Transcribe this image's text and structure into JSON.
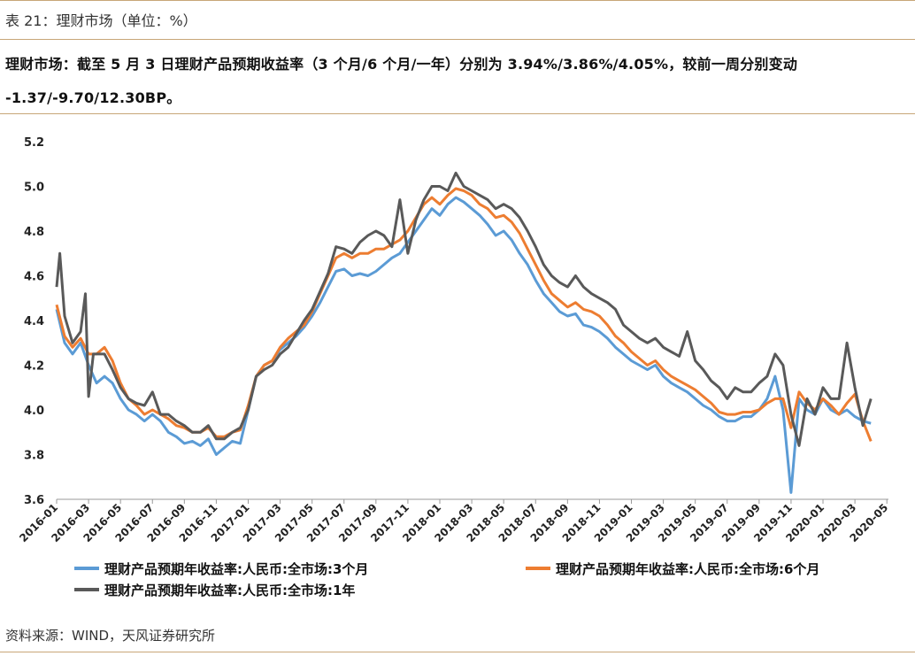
{
  "header": {
    "table_title": "表 21：理财市场（单位：%）",
    "summary": "理财市场：截至 5 月 3 日理财产品预期收益率（3 个月/6 个月/一年）分别为 3.94%/3.86%/4.05%，较前一周分别变动 -1.37/-9.70/12.30BP。"
  },
  "footer": {
    "source": "资料来源：WIND，天风证券研究所"
  },
  "chart_data": {
    "type": "line",
    "ylim": [
      3.6,
      5.2
    ],
    "yticks": [
      "3.6",
      "3.8",
      "4.0",
      "4.2",
      "4.4",
      "4.6",
      "4.8",
      "5.0",
      "5.2"
    ],
    "xticks": [
      "2016-01",
      "2016-03",
      "2016-05",
      "2016-07",
      "2016-09",
      "2016-11",
      "2017-01",
      "2017-03",
      "2017-05",
      "2017-07",
      "2017-09",
      "2017-11",
      "2018-01",
      "2018-03",
      "2018-05",
      "2018-07",
      "2018-09",
      "2018-11",
      "2019-01",
      "2019-03",
      "2019-05",
      "2019-07",
      "2019-09",
      "2019-11",
      "2020-01",
      "2020-03",
      "2020-05"
    ],
    "x_range": [
      0,
      52.1
    ],
    "grid": false,
    "legend_position": "bottom",
    "series": [
      {
        "name": "理财产品预期年收益率:人民币:全市场:3个月",
        "color": "#5b9bd5",
        "points": [
          [
            0,
            4.45
          ],
          [
            0.5,
            4.3
          ],
          [
            1,
            4.25
          ],
          [
            1.5,
            4.3
          ],
          [
            2,
            4.2
          ],
          [
            2.5,
            4.12
          ],
          [
            3,
            4.15
          ],
          [
            3.5,
            4.12
          ],
          [
            4,
            4.05
          ],
          [
            4.5,
            4.0
          ],
          [
            5,
            3.98
          ],
          [
            5.5,
            3.95
          ],
          [
            6,
            3.98
          ],
          [
            6.5,
            3.95
          ],
          [
            7,
            3.9
          ],
          [
            7.5,
            3.88
          ],
          [
            8,
            3.85
          ],
          [
            8.5,
            3.86
          ],
          [
            9,
            3.84
          ],
          [
            9.5,
            3.87
          ],
          [
            10,
            3.8
          ],
          [
            10.5,
            3.83
          ],
          [
            11,
            3.86
          ],
          [
            11.5,
            3.85
          ],
          [
            12,
            4.0
          ],
          [
            12.5,
            4.15
          ],
          [
            13,
            4.2
          ],
          [
            13.5,
            4.22
          ],
          [
            14,
            4.27
          ],
          [
            14.5,
            4.3
          ],
          [
            15,
            4.33
          ],
          [
            15.5,
            4.37
          ],
          [
            16,
            4.42
          ],
          [
            16.5,
            4.48
          ],
          [
            17,
            4.55
          ],
          [
            17.5,
            4.62
          ],
          [
            18,
            4.63
          ],
          [
            18.5,
            4.6
          ],
          [
            19,
            4.61
          ],
          [
            19.5,
            4.6
          ],
          [
            20,
            4.62
          ],
          [
            20.5,
            4.65
          ],
          [
            21,
            4.68
          ],
          [
            21.5,
            4.7
          ],
          [
            22,
            4.75
          ],
          [
            22.5,
            4.8
          ],
          [
            23,
            4.85
          ],
          [
            23.5,
            4.9
          ],
          [
            24,
            4.87
          ],
          [
            24.5,
            4.92
          ],
          [
            25,
            4.95
          ],
          [
            25.5,
            4.93
          ],
          [
            26,
            4.9
          ],
          [
            26.5,
            4.87
          ],
          [
            27,
            4.83
          ],
          [
            27.5,
            4.78
          ],
          [
            28,
            4.8
          ],
          [
            28.5,
            4.76
          ],
          [
            29,
            4.7
          ],
          [
            29.5,
            4.65
          ],
          [
            30,
            4.58
          ],
          [
            30.5,
            4.52
          ],
          [
            31,
            4.48
          ],
          [
            31.5,
            4.44
          ],
          [
            32,
            4.42
          ],
          [
            32.5,
            4.43
          ],
          [
            33,
            4.38
          ],
          [
            33.5,
            4.37
          ],
          [
            34,
            4.35
          ],
          [
            34.5,
            4.32
          ],
          [
            35,
            4.28
          ],
          [
            35.5,
            4.25
          ],
          [
            36,
            4.22
          ],
          [
            36.5,
            4.2
          ],
          [
            37,
            4.18
          ],
          [
            37.5,
            4.2
          ],
          [
            38,
            4.15
          ],
          [
            38.5,
            4.12
          ],
          [
            39,
            4.1
          ],
          [
            39.5,
            4.08
          ],
          [
            40,
            4.05
          ],
          [
            40.5,
            4.02
          ],
          [
            41,
            4.0
          ],
          [
            41.5,
            3.97
          ],
          [
            42,
            3.95
          ],
          [
            42.5,
            3.95
          ],
          [
            43,
            3.97
          ],
          [
            43.5,
            3.97
          ],
          [
            44,
            4.0
          ],
          [
            44.5,
            4.05
          ],
          [
            45,
            4.15
          ],
          [
            45.5,
            4.0
          ],
          [
            46,
            3.63
          ],
          [
            46.5,
            4.05
          ],
          [
            47,
            4.0
          ],
          [
            47.5,
            3.98
          ],
          [
            48,
            4.05
          ],
          [
            48.5,
            4.0
          ],
          [
            49,
            3.98
          ],
          [
            49.5,
            4.0
          ],
          [
            50,
            3.97
          ],
          [
            50.5,
            3.95
          ],
          [
            51,
            3.94
          ]
        ]
      },
      {
        "name": "理财产品预期年收益率:人民币:全市场:6个月",
        "color": "#ed7d31",
        "points": [
          [
            0,
            4.47
          ],
          [
            0.5,
            4.33
          ],
          [
            1,
            4.28
          ],
          [
            1.5,
            4.32
          ],
          [
            2,
            4.25
          ],
          [
            2.5,
            4.25
          ],
          [
            3,
            4.28
          ],
          [
            3.5,
            4.22
          ],
          [
            4,
            4.12
          ],
          [
            4.5,
            4.05
          ],
          [
            5,
            4.02
          ],
          [
            5.5,
            3.98
          ],
          [
            6,
            4.0
          ],
          [
            6.5,
            3.98
          ],
          [
            7,
            3.96
          ],
          [
            7.5,
            3.93
          ],
          [
            8,
            3.92
          ],
          [
            8.5,
            3.9
          ],
          [
            9,
            3.9
          ],
          [
            9.5,
            3.92
          ],
          [
            10,
            3.88
          ],
          [
            10.5,
            3.88
          ],
          [
            11,
            3.9
          ],
          [
            11.5,
            3.91
          ],
          [
            12,
            4.02
          ],
          [
            12.5,
            4.15
          ],
          [
            13,
            4.2
          ],
          [
            13.5,
            4.22
          ],
          [
            14,
            4.28
          ],
          [
            14.5,
            4.32
          ],
          [
            15,
            4.35
          ],
          [
            15.5,
            4.38
          ],
          [
            16,
            4.44
          ],
          [
            16.5,
            4.52
          ],
          [
            17,
            4.6
          ],
          [
            17.5,
            4.68
          ],
          [
            18,
            4.7
          ],
          [
            18.5,
            4.68
          ],
          [
            19,
            4.7
          ],
          [
            19.5,
            4.7
          ],
          [
            20,
            4.72
          ],
          [
            20.5,
            4.72
          ],
          [
            21,
            4.74
          ],
          [
            21.5,
            4.76
          ],
          [
            22,
            4.8
          ],
          [
            22.5,
            4.86
          ],
          [
            23,
            4.92
          ],
          [
            23.5,
            4.95
          ],
          [
            24,
            4.92
          ],
          [
            24.5,
            4.96
          ],
          [
            25,
            4.99
          ],
          [
            25.5,
            4.98
          ],
          [
            26,
            4.96
          ],
          [
            26.5,
            4.92
          ],
          [
            27,
            4.9
          ],
          [
            27.5,
            4.86
          ],
          [
            28,
            4.87
          ],
          [
            28.5,
            4.84
          ],
          [
            29,
            4.79
          ],
          [
            29.5,
            4.72
          ],
          [
            30,
            4.65
          ],
          [
            30.5,
            4.58
          ],
          [
            31,
            4.52
          ],
          [
            31.5,
            4.49
          ],
          [
            32,
            4.46
          ],
          [
            32.5,
            4.48
          ],
          [
            33,
            4.45
          ],
          [
            33.5,
            4.44
          ],
          [
            34,
            4.42
          ],
          [
            34.5,
            4.38
          ],
          [
            35,
            4.33
          ],
          [
            35.5,
            4.3
          ],
          [
            36,
            4.26
          ],
          [
            36.5,
            4.23
          ],
          [
            37,
            4.2
          ],
          [
            37.5,
            4.22
          ],
          [
            38,
            4.18
          ],
          [
            38.5,
            4.15
          ],
          [
            39,
            4.13
          ],
          [
            39.5,
            4.11
          ],
          [
            40,
            4.09
          ],
          [
            40.5,
            4.06
          ],
          [
            41,
            4.03
          ],
          [
            41.5,
            3.99
          ],
          [
            42,
            3.98
          ],
          [
            42.5,
            3.98
          ],
          [
            43,
            3.99
          ],
          [
            43.5,
            3.99
          ],
          [
            44,
            4.0
          ],
          [
            44.5,
            4.03
          ],
          [
            45,
            4.05
          ],
          [
            45.5,
            4.05
          ],
          [
            46,
            3.92
          ],
          [
            46.5,
            4.08
          ],
          [
            47,
            4.03
          ],
          [
            47.5,
            4.0
          ],
          [
            48,
            4.05
          ],
          [
            48.5,
            4.02
          ],
          [
            49,
            3.98
          ],
          [
            49.5,
            4.03
          ],
          [
            50,
            4.07
          ],
          [
            50.5,
            3.95
          ],
          [
            51,
            3.86
          ]
        ]
      },
      {
        "name": "理财产品预期年收益率:人民币:全市场:1年",
        "color": "#595959",
        "points": [
          [
            0,
            4.55
          ],
          [
            0.2,
            4.7
          ],
          [
            0.5,
            4.42
          ],
          [
            1,
            4.3
          ],
          [
            1.5,
            4.35
          ],
          [
            1.8,
            4.52
          ],
          [
            2,
            4.06
          ],
          [
            2.3,
            4.25
          ],
          [
            2.5,
            4.25
          ],
          [
            3,
            4.25
          ],
          [
            3.5,
            4.18
          ],
          [
            4,
            4.1
          ],
          [
            4.5,
            4.05
          ],
          [
            5,
            4.03
          ],
          [
            5.5,
            4.02
          ],
          [
            6,
            4.08
          ],
          [
            6.5,
            3.98
          ],
          [
            7,
            3.98
          ],
          [
            7.5,
            3.95
          ],
          [
            8,
            3.93
          ],
          [
            8.5,
            3.9
          ],
          [
            9,
            3.9
          ],
          [
            9.5,
            3.93
          ],
          [
            10,
            3.87
          ],
          [
            10.5,
            3.87
          ],
          [
            11,
            3.9
          ],
          [
            11.5,
            3.92
          ],
          [
            12,
            4.0
          ],
          [
            12.5,
            4.15
          ],
          [
            13,
            4.18
          ],
          [
            13.5,
            4.2
          ],
          [
            14,
            4.25
          ],
          [
            14.5,
            4.28
          ],
          [
            15,
            4.34
          ],
          [
            15.5,
            4.4
          ],
          [
            16,
            4.45
          ],
          [
            16.5,
            4.53
          ],
          [
            17,
            4.61
          ],
          [
            17.5,
            4.73
          ],
          [
            18,
            4.72
          ],
          [
            18.5,
            4.7
          ],
          [
            19,
            4.75
          ],
          [
            19.5,
            4.78
          ],
          [
            20,
            4.8
          ],
          [
            20.5,
            4.78
          ],
          [
            21,
            4.73
          ],
          [
            21.5,
            4.94
          ],
          [
            22,
            4.7
          ],
          [
            22.5,
            4.85
          ],
          [
            23,
            4.94
          ],
          [
            23.5,
            5.0
          ],
          [
            24,
            5.0
          ],
          [
            24.5,
            4.98
          ],
          [
            25,
            5.06
          ],
          [
            25.5,
            5.0
          ],
          [
            26,
            4.98
          ],
          [
            26.5,
            4.96
          ],
          [
            27,
            4.94
          ],
          [
            27.5,
            4.9
          ],
          [
            28,
            4.92
          ],
          [
            28.5,
            4.9
          ],
          [
            29,
            4.86
          ],
          [
            29.5,
            4.8
          ],
          [
            30,
            4.73
          ],
          [
            30.5,
            4.65
          ],
          [
            31,
            4.6
          ],
          [
            31.5,
            4.57
          ],
          [
            32,
            4.55
          ],
          [
            32.5,
            4.6
          ],
          [
            33,
            4.55
          ],
          [
            33.5,
            4.52
          ],
          [
            34,
            4.5
          ],
          [
            34.5,
            4.48
          ],
          [
            35,
            4.45
          ],
          [
            35.5,
            4.38
          ],
          [
            36,
            4.35
          ],
          [
            36.5,
            4.32
          ],
          [
            37,
            4.3
          ],
          [
            37.5,
            4.32
          ],
          [
            38,
            4.28
          ],
          [
            38.5,
            4.26
          ],
          [
            39,
            4.24
          ],
          [
            39.5,
            4.35
          ],
          [
            40,
            4.22
          ],
          [
            40.5,
            4.18
          ],
          [
            41,
            4.13
          ],
          [
            41.5,
            4.1
          ],
          [
            42,
            4.05
          ],
          [
            42.5,
            4.1
          ],
          [
            43,
            4.08
          ],
          [
            43.5,
            4.08
          ],
          [
            44,
            4.12
          ],
          [
            44.5,
            4.15
          ],
          [
            45,
            4.25
          ],
          [
            45.5,
            4.2
          ],
          [
            46,
            3.98
          ],
          [
            46.5,
            3.84
          ],
          [
            47,
            4.05
          ],
          [
            47.5,
            3.98
          ],
          [
            48,
            4.1
          ],
          [
            48.5,
            4.05
          ],
          [
            49,
            4.05
          ],
          [
            49.5,
            4.3
          ],
          [
            50,
            4.1
          ],
          [
            50.5,
            3.93
          ],
          [
            51,
            4.05
          ]
        ]
      }
    ]
  }
}
